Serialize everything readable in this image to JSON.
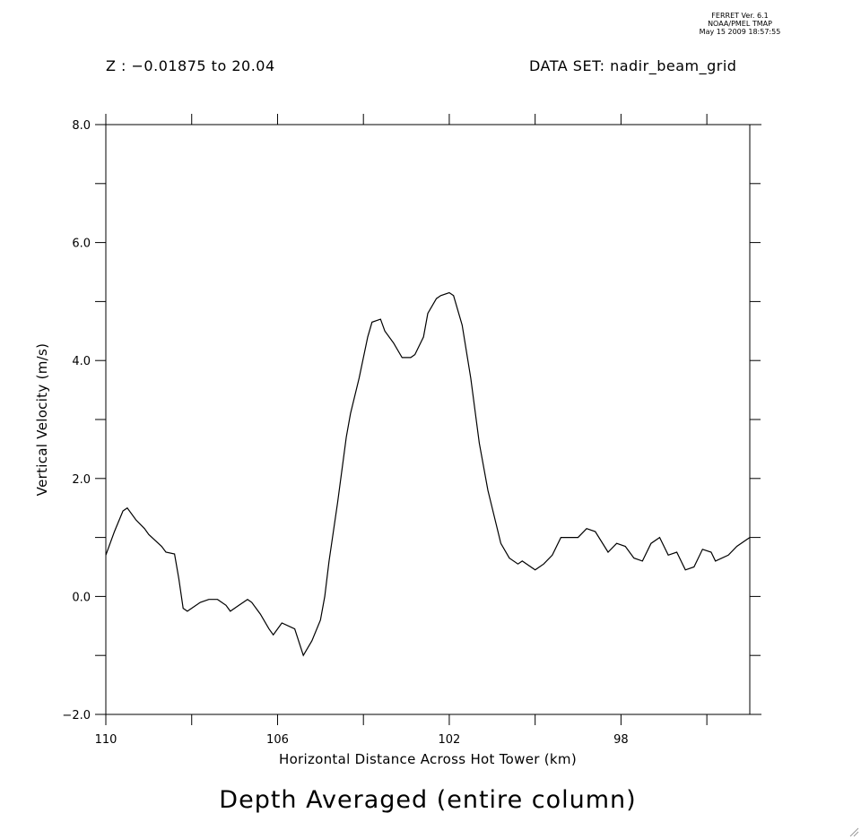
{
  "header": {
    "ferret_lines": [
      "FERRET Ver. 6.1",
      "NOAA/PMEL TMAP",
      "May 15 2009 18:57:55"
    ],
    "z_range": "Z : −0.01875 to 20.04",
    "dataset": "DATA SET: nadir_beam_grid"
  },
  "chart_data": {
    "type": "line",
    "title": "Depth Averaged (entire column)",
    "xlabel": "Horizontal Distance Across Hot Tower (km)",
    "ylabel": "Vertical Velocity (m/s)",
    "xlim": [
      110,
      95
    ],
    "ylim": [
      -2.0,
      8.0
    ],
    "x_reversed": true,
    "x_ticks": [
      110,
      108,
      106,
      104,
      102,
      100,
      98,
      96
    ],
    "x_tick_labels": [
      "110",
      "106",
      "102",
      "98"
    ],
    "x_tick_label_values": [
      110,
      106,
      102,
      98
    ],
    "y_ticks": [
      -2,
      -1,
      0,
      1,
      2,
      3,
      4,
      5,
      6,
      7,
      8
    ],
    "y_tick_labels": [
      "−2.0",
      "0.0",
      "2.0",
      "4.0",
      "6.0",
      "8.0"
    ],
    "y_tick_label_values": [
      -2,
      0,
      2,
      4,
      6,
      8
    ],
    "grid": false,
    "legend": "none",
    "series": [
      {
        "color": "#000000",
        "x": [
          110.0,
          109.8,
          109.6,
          109.5,
          109.3,
          109.1,
          109.0,
          108.7,
          108.6,
          108.4,
          108.3,
          108.2,
          108.1,
          107.8,
          107.6,
          107.4,
          107.2,
          107.1,
          106.9,
          106.7,
          106.6,
          106.4,
          106.2,
          106.1,
          106.0,
          105.9,
          105.6,
          105.4,
          105.2,
          105.0,
          104.9,
          104.8,
          104.6,
          104.4,
          104.3,
          104.1,
          103.9,
          103.8,
          103.6,
          103.5,
          103.3,
          103.1,
          102.9,
          102.8,
          102.6,
          102.5,
          102.3,
          102.2,
          102.0,
          101.9,
          101.7,
          101.5,
          101.3,
          101.1,
          100.9,
          100.8,
          100.6,
          100.4,
          100.3,
          100.0,
          99.8,
          99.6,
          99.4,
          99.2,
          99.0,
          98.8,
          98.6,
          98.3,
          98.1,
          97.9,
          97.7,
          97.5,
          97.3,
          97.1,
          96.9,
          96.7,
          96.5,
          96.3,
          96.1,
          95.9,
          95.8,
          95.5,
          95.3,
          95.1,
          95.0
        ],
        "y": [
          0.7,
          1.1,
          1.45,
          1.5,
          1.3,
          1.15,
          1.05,
          0.85,
          0.75,
          0.72,
          0.3,
          -0.2,
          -0.25,
          -0.1,
          -0.05,
          -0.05,
          -0.15,
          -0.25,
          -0.15,
          -0.05,
          -0.1,
          -0.3,
          -0.55,
          -0.65,
          -0.55,
          -0.45,
          -0.55,
          -1.0,
          -0.75,
          -0.4,
          0.0,
          0.6,
          1.6,
          2.7,
          3.1,
          3.7,
          4.4,
          4.65,
          4.7,
          4.5,
          4.3,
          4.05,
          4.05,
          4.1,
          4.4,
          4.8,
          5.05,
          5.1,
          5.15,
          5.1,
          4.6,
          3.7,
          2.6,
          1.8,
          1.2,
          0.9,
          0.65,
          0.55,
          0.6,
          0.45,
          0.55,
          0.7,
          1.0,
          1.0,
          1.0,
          1.15,
          1.1,
          0.75,
          0.9,
          0.85,
          0.65,
          0.6,
          0.9,
          1.0,
          0.7,
          0.75,
          0.45,
          0.5,
          0.8,
          0.75,
          0.6,
          0.7,
          0.85,
          0.95,
          1.0
        ]
      }
    ]
  }
}
